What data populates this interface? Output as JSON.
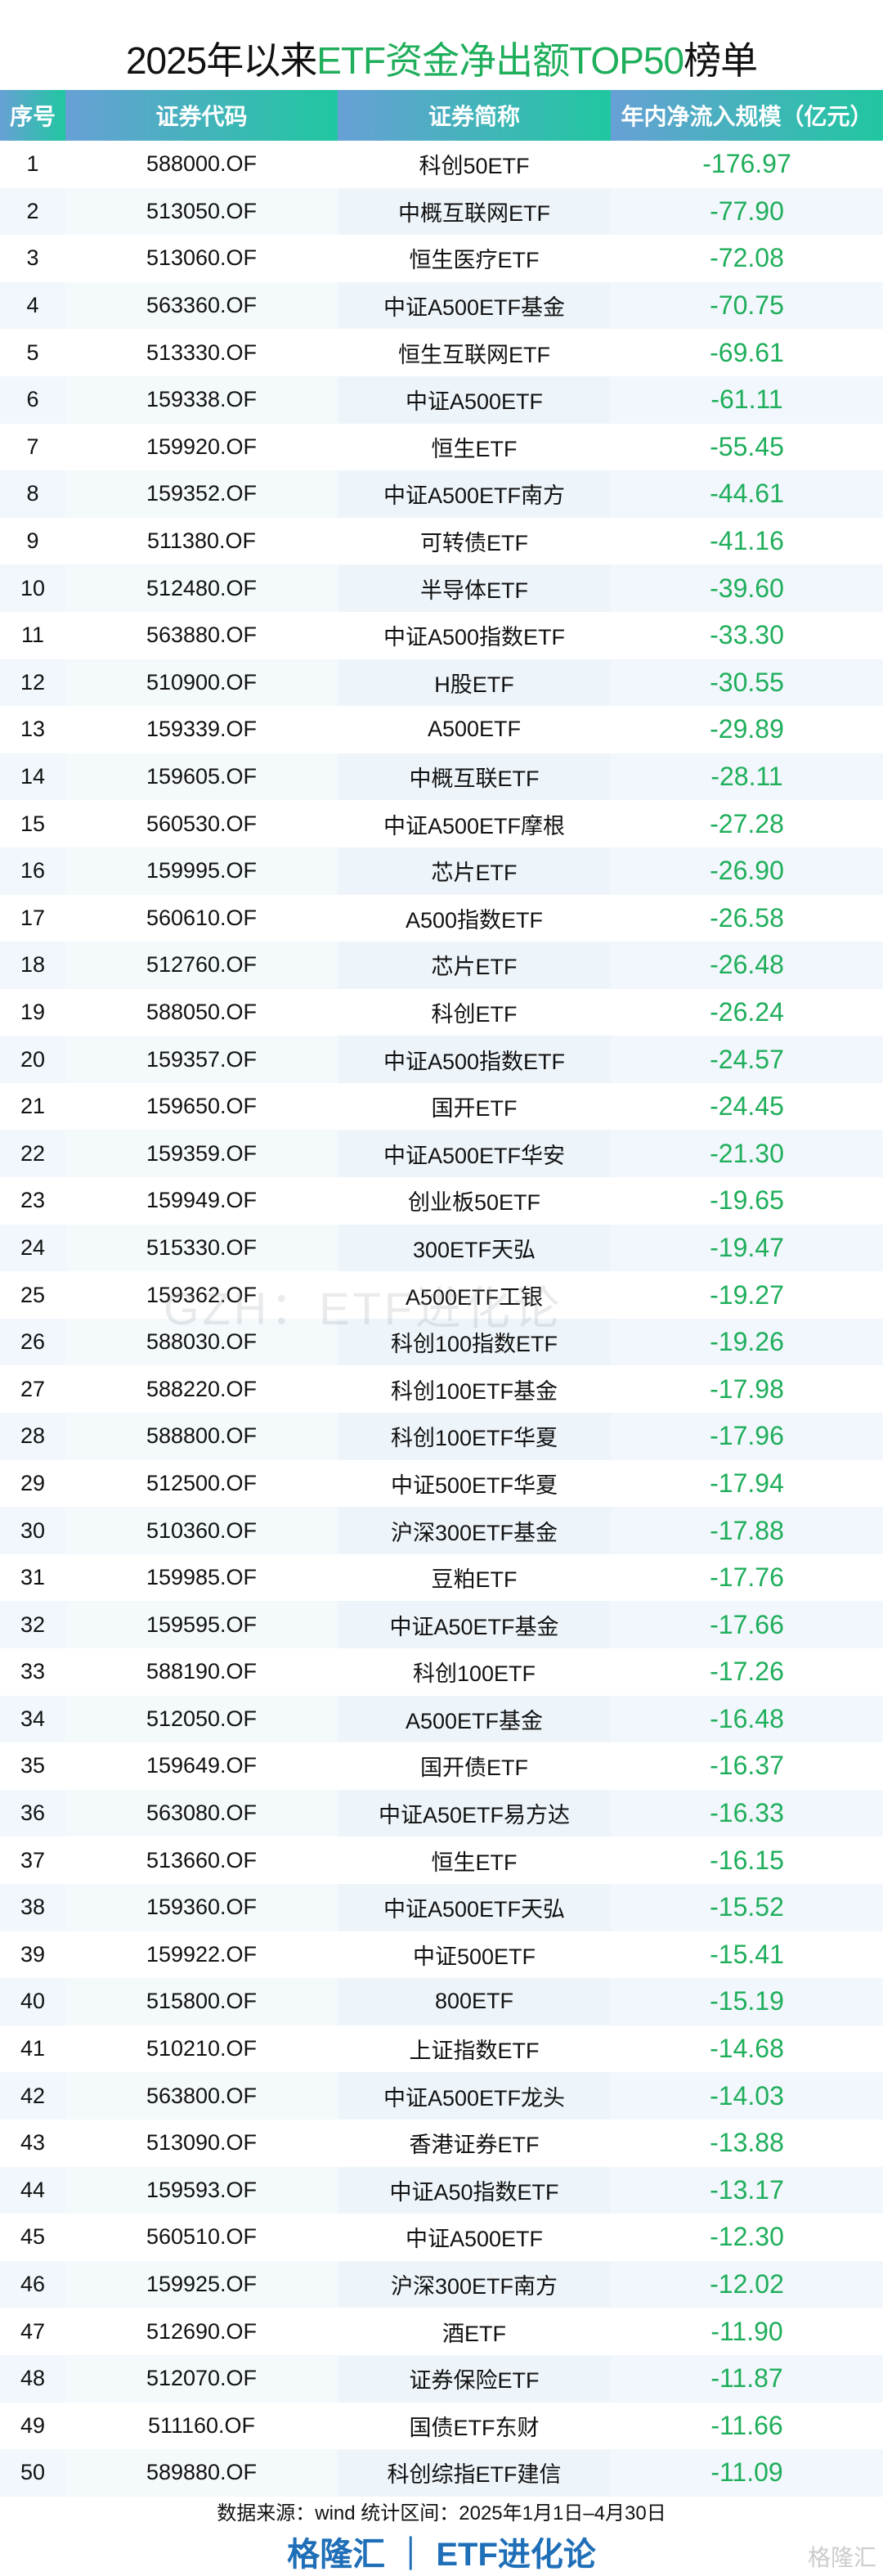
{
  "title": {
    "part1": "2025年以来",
    "part2": "ETF资金净出额TOP50",
    "part3": "榜单"
  },
  "headers": [
    "序号",
    "证券代码",
    "证券简称",
    "年内净流入规模（亿元）"
  ],
  "rows": [
    [
      "1",
      "588000.OF",
      "科创50ETF",
      "-176.97"
    ],
    [
      "2",
      "513050.OF",
      "中概互联网ETF",
      "-77.90"
    ],
    [
      "3",
      "513060.OF",
      "恒生医疗ETF",
      "-72.08"
    ],
    [
      "4",
      "563360.OF",
      "中证A500ETF基金",
      "-70.75"
    ],
    [
      "5",
      "513330.OF",
      "恒生互联网ETF",
      "-69.61"
    ],
    [
      "6",
      "159338.OF",
      "中证A500ETF",
      "-61.11"
    ],
    [
      "7",
      "159920.OF",
      "恒生ETF",
      "-55.45"
    ],
    [
      "8",
      "159352.OF",
      "中证A500ETF南方",
      "-44.61"
    ],
    [
      "9",
      "511380.OF",
      "可转债ETF",
      "-41.16"
    ],
    [
      "10",
      "512480.OF",
      "半导体ETF",
      "-39.60"
    ],
    [
      "11",
      "563880.OF",
      "中证A500指数ETF",
      "-33.30"
    ],
    [
      "12",
      "510900.OF",
      "H股ETF",
      "-30.55"
    ],
    [
      "13",
      "159339.OF",
      "A500ETF",
      "-29.89"
    ],
    [
      "14",
      "159605.OF",
      "中概互联ETF",
      "-28.11"
    ],
    [
      "15",
      "560530.OF",
      "中证A500ETF摩根",
      "-27.28"
    ],
    [
      "16",
      "159995.OF",
      "芯片ETF",
      "-26.90"
    ],
    [
      "17",
      "560610.OF",
      "A500指数ETF",
      "-26.58"
    ],
    [
      "18",
      "512760.OF",
      "芯片ETF",
      "-26.48"
    ],
    [
      "19",
      "588050.OF",
      "科创ETF",
      "-26.24"
    ],
    [
      "20",
      "159357.OF",
      "中证A500指数ETF",
      "-24.57"
    ],
    [
      "21",
      "159650.OF",
      "国开ETF",
      "-24.45"
    ],
    [
      "22",
      "159359.OF",
      "中证A500ETF华安",
      "-21.30"
    ],
    [
      "23",
      "159949.OF",
      "创业板50ETF",
      "-19.65"
    ],
    [
      "24",
      "515330.OF",
      "300ETF天弘",
      "-19.47"
    ],
    [
      "25",
      "159362.OF",
      "A500ETF工银",
      "-19.27"
    ],
    [
      "26",
      "588030.OF",
      "科创100指数ETF",
      "-19.26"
    ],
    [
      "27",
      "588220.OF",
      "科创100ETF基金",
      "-17.98"
    ],
    [
      "28",
      "588800.OF",
      "科创100ETF华夏",
      "-17.96"
    ],
    [
      "29",
      "512500.OF",
      "中证500ETF华夏",
      "-17.94"
    ],
    [
      "30",
      "510360.OF",
      "沪深300ETF基金",
      "-17.88"
    ],
    [
      "31",
      "159985.OF",
      "豆粕ETF",
      "-17.76"
    ],
    [
      "32",
      "159595.OF",
      "中证A50ETF基金",
      "-17.66"
    ],
    [
      "33",
      "588190.OF",
      "科创100ETF",
      "-17.26"
    ],
    [
      "34",
      "512050.OF",
      "A500ETF基金",
      "-16.48"
    ],
    [
      "35",
      "159649.OF",
      "国开债ETF",
      "-16.37"
    ],
    [
      "36",
      "563080.OF",
      "中证A50ETF易方达",
      "-16.33"
    ],
    [
      "37",
      "513660.OF",
      "恒生ETF",
      "-16.15"
    ],
    [
      "38",
      "159360.OF",
      "中证A500ETF天弘",
      "-15.52"
    ],
    [
      "39",
      "159922.OF",
      "中证500ETF",
      "-15.41"
    ],
    [
      "40",
      "515800.OF",
      "800ETF",
      "-15.19"
    ],
    [
      "41",
      "510210.OF",
      "上证指数ETF",
      "-14.68"
    ],
    [
      "42",
      "563800.OF",
      "中证A500ETF龙头",
      "-14.03"
    ],
    [
      "43",
      "513090.OF",
      "香港证券ETF",
      "-13.88"
    ],
    [
      "44",
      "159593.OF",
      "中证A50指数ETF",
      "-13.17"
    ],
    [
      "45",
      "560510.OF",
      "中证A500ETF",
      "-12.30"
    ],
    [
      "46",
      "159925.OF",
      "沪深300ETF南方",
      "-12.02"
    ],
    [
      "47",
      "512690.OF",
      "酒ETF",
      "-11.90"
    ],
    [
      "48",
      "512070.OF",
      "证券保险ETF",
      "-11.87"
    ],
    [
      "49",
      "511160.OF",
      "国债ETF东财",
      "-11.66"
    ],
    [
      "50",
      "589880.OF",
      "科创综指ETF建信",
      "-11.09"
    ]
  ],
  "watermark": "GZH：ETF进化论",
  "footer": {
    "source": "数据来源：wind 统计区间：2025年1月1日–4月30日",
    "brand": "格隆汇 ｜ ETF进化论",
    "logo": "格隆汇"
  },
  "colors": {
    "value": "#1fae5b",
    "brand": "#1f6fb8"
  }
}
